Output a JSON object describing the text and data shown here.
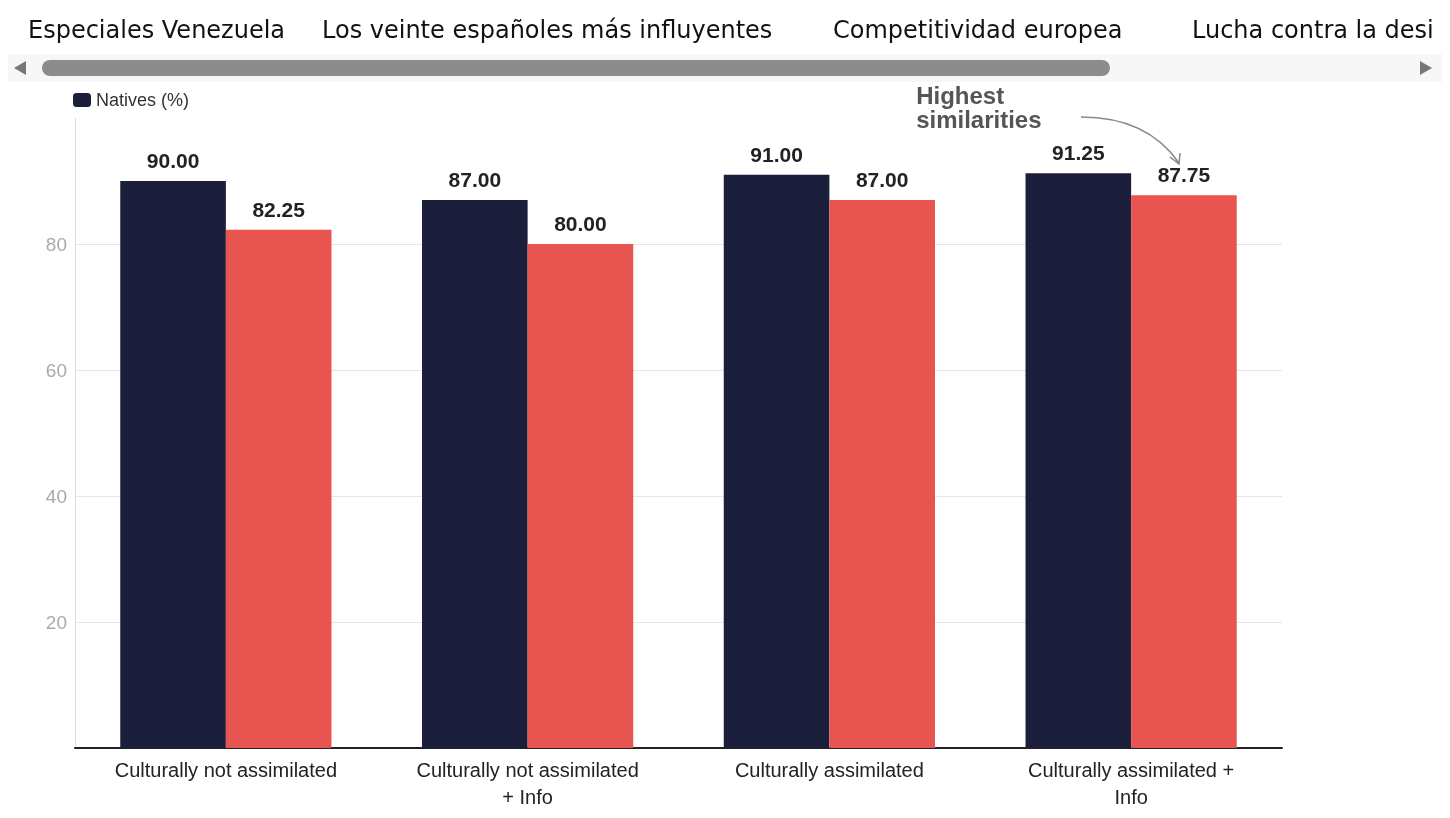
{
  "chart_data": {
    "type": "bar",
    "categories": [
      "Culturally not assimilated",
      "Culturally not assimilated\n+ Info",
      "Culturally assimilated",
      "Culturally assimilated +\nInfo"
    ],
    "series": [
      {
        "name": "Natives (%)",
        "color": "#1b1f3b",
        "values": [
          90,
          87,
          91,
          91.25
        ],
        "value_labels": [
          "90.00",
          "87.00",
          "91.00",
          "91.25"
        ]
      },
      {
        "color": "#e85550",
        "values": [
          82.25,
          80,
          87,
          87.75
        ],
        "value_labels": [
          "82.25",
          "80.00",
          "87.00",
          "87.75"
        ]
      }
    ],
    "ylim": [
      0,
      100
    ],
    "yticks": [
      20,
      40,
      60,
      80
    ],
    "grid": "y",
    "legend": "top left",
    "annotations": [
      "Especiales Venezuela",
      "Los veinte españoles más influyentes",
      "Competitividad europea",
      "Lucha contra la desi",
      "Highest\nsimilarities"
    ]
  }
}
